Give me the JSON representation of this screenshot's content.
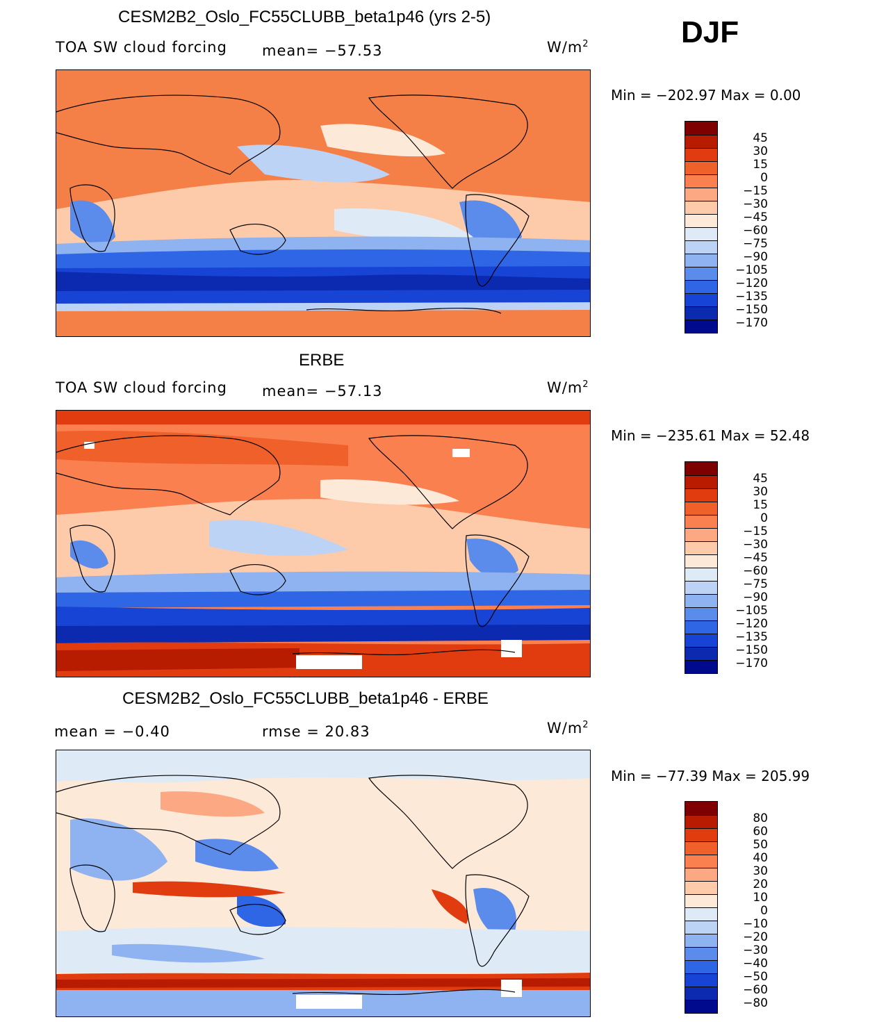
{
  "season": "DJF",
  "unit_text": "W/m",
  "unit_sup": "2",
  "panels": [
    {
      "title": "CESM2B2_Oslo_FC55CLUBB_beta1p46 (yrs 2-5)",
      "left_label": "TOA SW cloud forcing",
      "mid_label": "mean= −57.53",
      "min_max": "Min  =  −202.97  Max  =     0.00"
    },
    {
      "title": "ERBE",
      "left_label": "TOA SW cloud forcing",
      "mid_label": "mean= −57.13",
      "min_max": "Min  =  −235.61  Max  =   52.48"
    },
    {
      "title": "CESM2B2_Oslo_FC55CLUBB_beta1p46 - ERBE",
      "left_label": "mean  =    −0.40",
      "mid_label": "rmse  =    20.83",
      "min_max": "Min  =  −77.39  Max  =  205.99"
    }
  ],
  "chart_data": [
    {
      "type": "heatmap",
      "title": "CESM2B2_Oslo_FC55CLUBB_beta1p46 (yrs 2-5)",
      "variable": "TOA SW cloud forcing",
      "mean": -57.53,
      "min": -202.97,
      "max": 0.0,
      "contour_levels": [
        "45",
        "30",
        "15",
        "0",
        "−15",
        "−30",
        "−45",
        "−60",
        "−75",
        "−90",
        "−105",
        "−120",
        "−135",
        "−150",
        "−170"
      ],
      "colors": [
        "#7f0000",
        "#b71c00",
        "#e03c10",
        "#f0602a",
        "#fa8050",
        "#fca882",
        "#fdcbaa",
        "#fde9d8",
        "#deebf7",
        "#bcd3f6",
        "#8fb2f0",
        "#5c8ceb",
        "#2f66e6",
        "#1744d4",
        "#0b2ab0",
        "#000a8c"
      ]
    },
    {
      "type": "heatmap",
      "title": "ERBE",
      "variable": "TOA SW cloud forcing",
      "mean": -57.13,
      "min": -235.61,
      "max": 52.48,
      "contour_levels": [
        "45",
        "30",
        "15",
        "0",
        "−15",
        "−30",
        "−45",
        "−60",
        "−75",
        "−90",
        "−105",
        "−120",
        "−135",
        "−150",
        "−170"
      ],
      "colors": [
        "#7f0000",
        "#b71c00",
        "#e03c10",
        "#f0602a",
        "#fa8050",
        "#fca882",
        "#fdcbaa",
        "#fde9d8",
        "#deebf7",
        "#bcd3f6",
        "#8fb2f0",
        "#5c8ceb",
        "#2f66e6",
        "#1744d4",
        "#0b2ab0",
        "#000a8c"
      ]
    },
    {
      "type": "heatmap",
      "title": "CESM2B2_Oslo_FC55CLUBB_beta1p46 - ERBE",
      "mean": -0.4,
      "rmse": 20.83,
      "min": -77.39,
      "max": 205.99,
      "contour_levels": [
        "80",
        "60",
        "50",
        "40",
        "30",
        "20",
        "10",
        "0",
        "−10",
        "−20",
        "−30",
        "−40",
        "−50",
        "−60",
        "−80"
      ],
      "colors": [
        "#7f0000",
        "#b71c00",
        "#e03c10",
        "#f0602a",
        "#fa8050",
        "#fca882",
        "#fdcbaa",
        "#fde9d8",
        "#deebf7",
        "#bcd3f6",
        "#8fb2f0",
        "#5c8ceb",
        "#2f66e6",
        "#1744d4",
        "#0b2ab0",
        "#000a8c"
      ]
    }
  ]
}
